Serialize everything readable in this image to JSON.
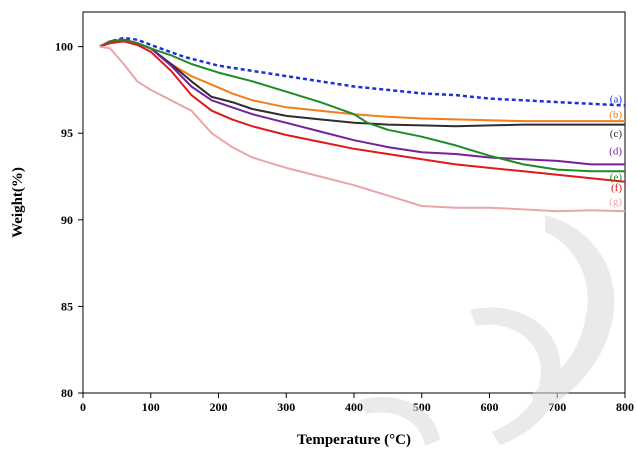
{
  "chart_data": {
    "type": "line",
    "title": "",
    "xlabel": "Temperature (°C)",
    "ylabel": "Weight(%)",
    "xlim": [
      0,
      800
    ],
    "ylim": [
      80,
      102
    ],
    "xticks": [
      0,
      100,
      200,
      300,
      400,
      500,
      600,
      700,
      800
    ],
    "yticks": [
      80,
      85,
      90,
      95,
      100
    ],
    "grid": false,
    "series": [
      {
        "name": "(a)",
        "color": "#1f2fd9",
        "dash": true,
        "x": [
          25,
          40,
          60,
          80,
          100,
          150,
          200,
          250,
          300,
          350,
          400,
          450,
          500,
          550,
          600,
          650,
          700,
          750,
          800
        ],
        "y": [
          100.0,
          100.3,
          100.5,
          100.4,
          100.1,
          99.4,
          98.9,
          98.6,
          98.3,
          98.0,
          97.7,
          97.5,
          97.3,
          97.2,
          97.0,
          96.9,
          96.8,
          96.7,
          96.6
        ]
      },
      {
        "name": "(b)",
        "color": "#f07f1c",
        "dash": false,
        "x": [
          25,
          40,
          60,
          80,
          100,
          130,
          160,
          190,
          220,
          250,
          300,
          350,
          400,
          450,
          500,
          550,
          600,
          650,
          700,
          750,
          800
        ],
        "y": [
          100.0,
          100.3,
          100.4,
          100.2,
          99.9,
          99.0,
          98.3,
          97.8,
          97.3,
          96.9,
          96.5,
          96.3,
          96.1,
          95.95,
          95.85,
          95.8,
          95.75,
          95.7,
          95.7,
          95.7,
          95.7
        ]
      },
      {
        "name": "(c)",
        "color": "#2e2e2e",
        "dash": false,
        "x": [
          25,
          40,
          60,
          80,
          100,
          130,
          160,
          190,
          220,
          250,
          300,
          350,
          400,
          450,
          500,
          550,
          600,
          650,
          700,
          750,
          800
        ],
        "y": [
          100.0,
          100.3,
          100.4,
          100.2,
          99.9,
          99.0,
          98.0,
          97.1,
          96.8,
          96.4,
          96.0,
          95.8,
          95.6,
          95.5,
          95.45,
          95.4,
          95.45,
          95.5,
          95.5,
          95.5,
          95.5
        ]
      },
      {
        "name": "(d)",
        "color": "#7a1f9a",
        "dash": false,
        "x": [
          25,
          40,
          60,
          80,
          100,
          130,
          160,
          190,
          220,
          250,
          300,
          350,
          400,
          450,
          500,
          550,
          600,
          650,
          700,
          750,
          800
        ],
        "y": [
          100.0,
          100.3,
          100.4,
          100.2,
          99.9,
          98.9,
          97.7,
          96.9,
          96.5,
          96.1,
          95.6,
          95.1,
          94.6,
          94.2,
          93.9,
          93.8,
          93.6,
          93.5,
          93.4,
          93.2,
          93.2
        ]
      },
      {
        "name": "(e)",
        "color": "#1f8a2a",
        "dash": false,
        "x": [
          25,
          40,
          60,
          80,
          100,
          130,
          160,
          200,
          250,
          300,
          350,
          400,
          420,
          450,
          500,
          550,
          600,
          650,
          700,
          750,
          800
        ],
        "y": [
          100.0,
          100.3,
          100.4,
          100.2,
          99.9,
          99.5,
          99.0,
          98.5,
          98.0,
          97.4,
          96.8,
          96.1,
          95.6,
          95.2,
          94.8,
          94.3,
          93.7,
          93.2,
          92.9,
          92.8,
          92.8
        ]
      },
      {
        "name": "(f)",
        "color": "#e0191b",
        "dash": false,
        "x": [
          25,
          40,
          60,
          80,
          100,
          130,
          160,
          190,
          220,
          250,
          300,
          350,
          400,
          450,
          500,
          550,
          600,
          650,
          700,
          750,
          800
        ],
        "y": [
          100.0,
          100.2,
          100.3,
          100.1,
          99.7,
          98.6,
          97.2,
          96.3,
          95.8,
          95.4,
          94.9,
          94.5,
          94.1,
          93.8,
          93.5,
          93.2,
          93.0,
          92.8,
          92.6,
          92.4,
          92.2
        ]
      },
      {
        "name": "(g)",
        "color": "#e8a6a8",
        "dash": false,
        "x": [
          25,
          40,
          60,
          80,
          100,
          130,
          160,
          190,
          220,
          250,
          300,
          350,
          400,
          450,
          500,
          550,
          600,
          650,
          700,
          750,
          800
        ],
        "y": [
          100.0,
          99.9,
          99.0,
          98.0,
          97.5,
          96.9,
          96.3,
          95.0,
          94.2,
          93.6,
          93.0,
          92.5,
          92.0,
          91.4,
          90.8,
          90.7,
          90.7,
          90.6,
          90.5,
          90.55,
          90.5
        ]
      }
    ]
  }
}
